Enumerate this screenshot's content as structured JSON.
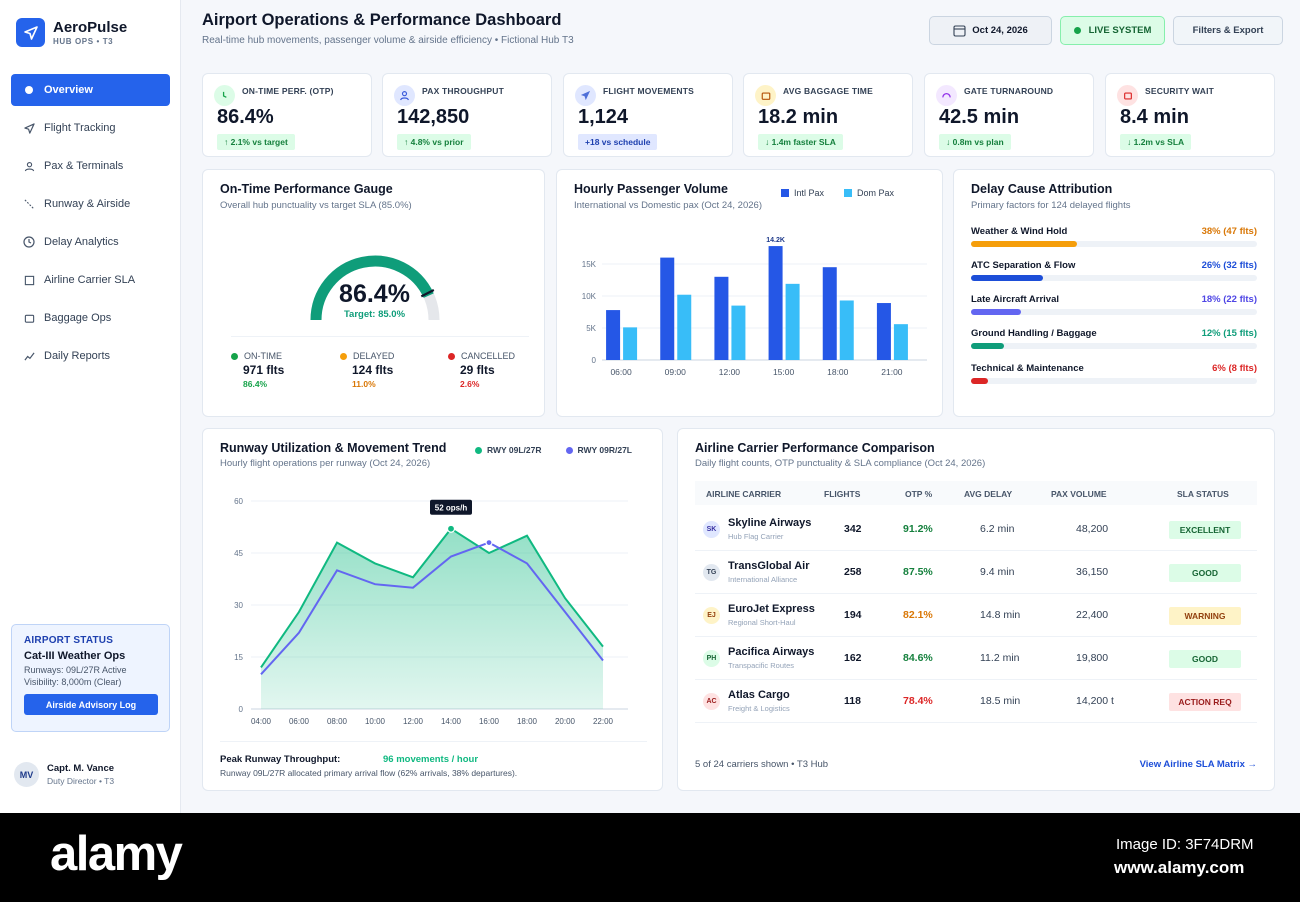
{
  "brand": {
    "name": "AeroPulse",
    "sub": "HUB OPS • T3"
  },
  "nav": [
    {
      "label": "Overview",
      "icon": "overview-dot-icon"
    },
    {
      "label": "Flight Tracking",
      "icon": "plane-icon"
    },
    {
      "label": "Pax & Terminals",
      "icon": "user-icon"
    },
    {
      "label": "Runway & Airside",
      "icon": "runway-icon"
    },
    {
      "label": "Delay Analytics",
      "icon": "clock-icon"
    },
    {
      "label": "Airline Carrier SLA",
      "icon": "square-icon"
    },
    {
      "label": "Baggage Ops",
      "icon": "bag-icon"
    },
    {
      "label": "Daily Reports",
      "icon": "trend-icon"
    }
  ],
  "airport_status": {
    "heading": "AIRPORT STATUS",
    "title": "Cat-III Weather Ops",
    "line1": "Runways: 09L/27R Active",
    "line2": "Visibility: 8,000m (Clear)",
    "button": "Airside Advisory Log"
  },
  "user": {
    "initials": "MV",
    "name": "Capt. M. Vance",
    "role": "Duty Director • T3"
  },
  "header": {
    "title": "Airport Operations & Performance Dashboard",
    "subtitle": "Real-time hub movements, passenger volume & airside efficiency • Fictional Hub T3",
    "date": "Oct 24, 2026",
    "live": "LIVE SYSTEM",
    "filters": "Filters & Export"
  },
  "kpis": [
    {
      "label": "ON-TIME PERF. (OTP)",
      "value": "86.4%",
      "delta": "↑ 2.1% vs target",
      "icon": "clock-icon",
      "tone": "green"
    },
    {
      "label": "PAX THROUGHPUT",
      "value": "142,850",
      "delta": "↑ 4.8% vs prior",
      "icon": "user-icon",
      "tone": "green"
    },
    {
      "label": "FLIGHT MOVEMENTS",
      "value": "1,124",
      "delta": "+18 vs schedule",
      "icon": "plane-icon",
      "tone": "blue"
    },
    {
      "label": "AVG BAGGAGE TIME",
      "value": "18.2 min",
      "delta": "↓ 1.4m faster SLA",
      "icon": "bag-icon",
      "tone": "green"
    },
    {
      "label": "GATE TURNAROUND",
      "value": "42.5 min",
      "delta": "↓ 0.8m vs plan",
      "icon": "arc-icon",
      "tone": "green"
    },
    {
      "label": "SECURITY WAIT",
      "value": "8.4 min",
      "delta": "↓ 1.2m vs SLA",
      "icon": "shield-icon",
      "tone": "green"
    }
  ],
  "gauge": {
    "title": "On-Time Performance Gauge",
    "subtitle": "Overall hub punctuality vs target SLA (85.0%)",
    "value": "86.4%",
    "value_num": 86.4,
    "target": "Target: 85.0%",
    "legend": [
      {
        "label": "ON-TIME",
        "value": "971 flts",
        "pct": "86.4%",
        "color": "#16a34a"
      },
      {
        "label": "DELAYED",
        "value": "124 flts",
        "pct": "11.0%",
        "color": "#f59e0b"
      },
      {
        "label": "CANCELLED",
        "value": "29 flts",
        "pct": "2.6%",
        "color": "#dc2626"
      }
    ]
  },
  "hourly": {
    "title": "Hourly Passenger Volume",
    "subtitle": "International vs Domestic pax (Oct 24, 2026)",
    "legend_intl": "Intl Pax",
    "legend_dom": "Dom Pax"
  },
  "delay": {
    "title": "Delay Cause Attribution",
    "subtitle": "Primary factors for 124 delayed flights",
    "rows": [
      {
        "name": "Weather & Wind Hold",
        "value": "38% (47 flts)",
        "pct": 38,
        "color": "#f59e0b",
        "text_color": "#d97706"
      },
      {
        "name": "ATC Separation & Flow",
        "value": "26% (32 flts)",
        "pct": 26,
        "color": "#1d4ed8",
        "text_color": "#1d4ed8"
      },
      {
        "name": "Late Aircraft Arrival",
        "value": "18% (22 flts)",
        "pct": 18,
        "color": "#6366f1",
        "text_color": "#4f46e5"
      },
      {
        "name": "Ground Handling / Baggage",
        "value": "12% (15 flts)",
        "pct": 12,
        "color": "#0f9d7a",
        "text_color": "#0f9d7a"
      },
      {
        "name": "Technical & Maintenance",
        "value": "6% (8 flts)",
        "pct": 6,
        "color": "#dc2626",
        "text_color": "#dc2626"
      }
    ]
  },
  "runway": {
    "title": "Runway Utilization & Movement Trend",
    "subtitle": "Hourly flight operations per runway (Oct 24, 2026)",
    "tooltip": "52 ops/h",
    "peak_label": "Peak Runway Throughput:",
    "peak_value": "96 movements / hour",
    "peak_note": "Runway 09L/27R allocated primary arrival flow (62% arrivals, 38% departures)."
  },
  "carriers": {
    "title": "Airline Carrier Performance Comparison",
    "subtitle": "Daily flight counts, OTP punctuality & SLA compliance (Oct 24, 2026)",
    "headers": [
      "AIRLINE CARRIER",
      "FLIGHTS",
      "OTP %",
      "AVG DELAY",
      "PAX VOLUME",
      "SLA STATUS"
    ],
    "rows": [
      {
        "code": "SK",
        "name": "Skyline Airways",
        "type": "Hub Flag Carrier",
        "flights": "342",
        "otp": "91.2%",
        "delay": "6.2 min",
        "pax": "48,200",
        "status": "EXCELLENT",
        "otp_color": "#15803d",
        "badge_bg": "#dcfce7",
        "badge_fg": "#166534",
        "logo_bg": "#e0e7ff",
        "logo_fg": "#3730a3"
      },
      {
        "code": "TG",
        "name": "TransGlobal Air",
        "type": "International Alliance",
        "flights": "258",
        "otp": "87.5%",
        "delay": "9.4 min",
        "pax": "36,150",
        "status": "GOOD",
        "otp_color": "#15803d",
        "badge_bg": "#dcfce7",
        "badge_fg": "#166534",
        "logo_bg": "#e2e8f0",
        "logo_fg": "#334155"
      },
      {
        "code": "EJ",
        "name": "EuroJet Express",
        "type": "Regional Short-Haul",
        "flights": "194",
        "otp": "82.1%",
        "delay": "14.8 min",
        "pax": "22,400",
        "status": "WARNING",
        "otp_color": "#d97706",
        "badge_bg": "#fef3c7",
        "badge_fg": "#92400e",
        "logo_bg": "#fef3c7",
        "logo_fg": "#92400e"
      },
      {
        "code": "PH",
        "name": "Pacifica Airways",
        "type": "Transpacific Routes",
        "flights": "162",
        "otp": "84.6%",
        "delay": "11.2 min",
        "pax": "19,800",
        "status": "GOOD",
        "otp_color": "#15803d",
        "badge_bg": "#dcfce7",
        "badge_fg": "#166534",
        "logo_bg": "#dcfce7",
        "logo_fg": "#166534"
      },
      {
        "code": "AC",
        "name": "Atlas Cargo",
        "type": "Freight & Logistics",
        "flights": "118",
        "otp": "78.4%",
        "delay": "18.5 min",
        "pax": "14,200 t",
        "status": "ACTION REQ",
        "otp_color": "#dc2626",
        "badge_bg": "#fee2e2",
        "badge_fg": "#991b1b",
        "logo_bg": "#fee2e2",
        "logo_fg": "#991b1b"
      }
    ],
    "footer_left": "5 of 24 carriers shown • T3 Hub",
    "footer_link": "View Airline SLA Matrix →"
  },
  "watermark": {
    "logo": "alamy",
    "id": "Image ID: 3F74DRM",
    "url": "www.alamy.com"
  },
  "chart_data": [
    {
      "type": "bar",
      "title": "Hourly Passenger Volume",
      "categories": [
        "06:00",
        "09:00",
        "12:00",
        "15:00",
        "18:00",
        "21:00"
      ],
      "series": [
        {
          "name": "Intl Pax",
          "values": [
            7800,
            16000,
            13000,
            17800,
            14500,
            8900
          ],
          "color": "#2557e6"
        },
        {
          "name": "Dom Pax",
          "values": [
            5100,
            10200,
            8500,
            11900,
            9300,
            5600
          ],
          "color": "#38bdf8"
        }
      ],
      "yticks": [
        "0",
        "5K",
        "10K",
        "15K"
      ],
      "ylim": [
        0,
        20000
      ],
      "annotation": "14.2K",
      "legend": "top-right"
    },
    {
      "type": "area",
      "title": "Runway Utilization & Movement Trend",
      "x": [
        "04:00",
        "06:00",
        "08:00",
        "10:00",
        "12:00",
        "14:00",
        "16:00",
        "18:00",
        "20:00",
        "22:00"
      ],
      "series": [
        {
          "name": "RWY 09L/27R",
          "values": [
            12,
            28,
            48,
            42,
            38,
            52,
            45,
            50,
            32,
            18
          ],
          "color": "#10b981"
        },
        {
          "name": "RWY 09R/27L",
          "values": [
            10,
            22,
            40,
            36,
            35,
            44,
            48,
            42,
            28,
            14
          ],
          "color": "#6366f1"
        }
      ],
      "yticks": [
        "0",
        "15",
        "30",
        "45",
        "60"
      ],
      "ylim": [
        0,
        60
      ],
      "legend": "top-right"
    }
  ]
}
